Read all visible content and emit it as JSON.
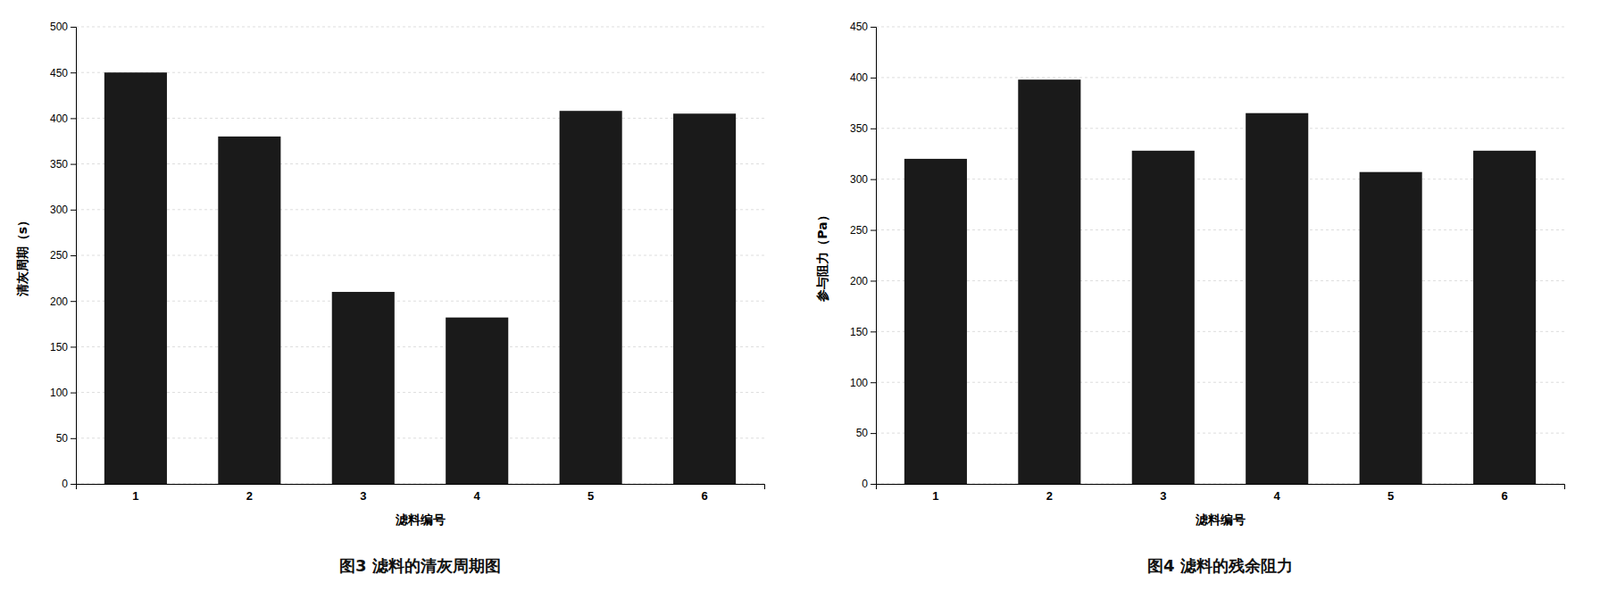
{
  "chart_data": [
    {
      "type": "bar",
      "title": "图3  滤料的清灰周期图",
      "xlabel": "滤料编号",
      "ylabel": "清灰周期（s）",
      "categories": [
        "1",
        "2",
        "3",
        "4",
        "5",
        "6"
      ],
      "values": [
        450,
        380,
        210,
        182,
        408,
        405
      ],
      "color": "#1a1a1a",
      "ylim": [
        0,
        500
      ],
      "yticks": [
        0,
        50,
        100,
        150,
        200,
        250,
        300,
        350,
        400,
        450,
        500
      ],
      "grid": true
    },
    {
      "type": "bar",
      "title": "图4  滤料的残余阻力",
      "xlabel": "滤料编号",
      "ylabel": "参与阻力（Pa）",
      "categories": [
        "1",
        "2",
        "3",
        "4",
        "5",
        "6"
      ],
      "values": [
        320,
        398,
        328,
        365,
        307,
        328
      ],
      "color": "#1a1a1a",
      "ylim": [
        0,
        450
      ],
      "yticks": [
        0,
        50,
        100,
        150,
        200,
        250,
        300,
        350,
        400,
        450
      ],
      "grid": true
    }
  ]
}
